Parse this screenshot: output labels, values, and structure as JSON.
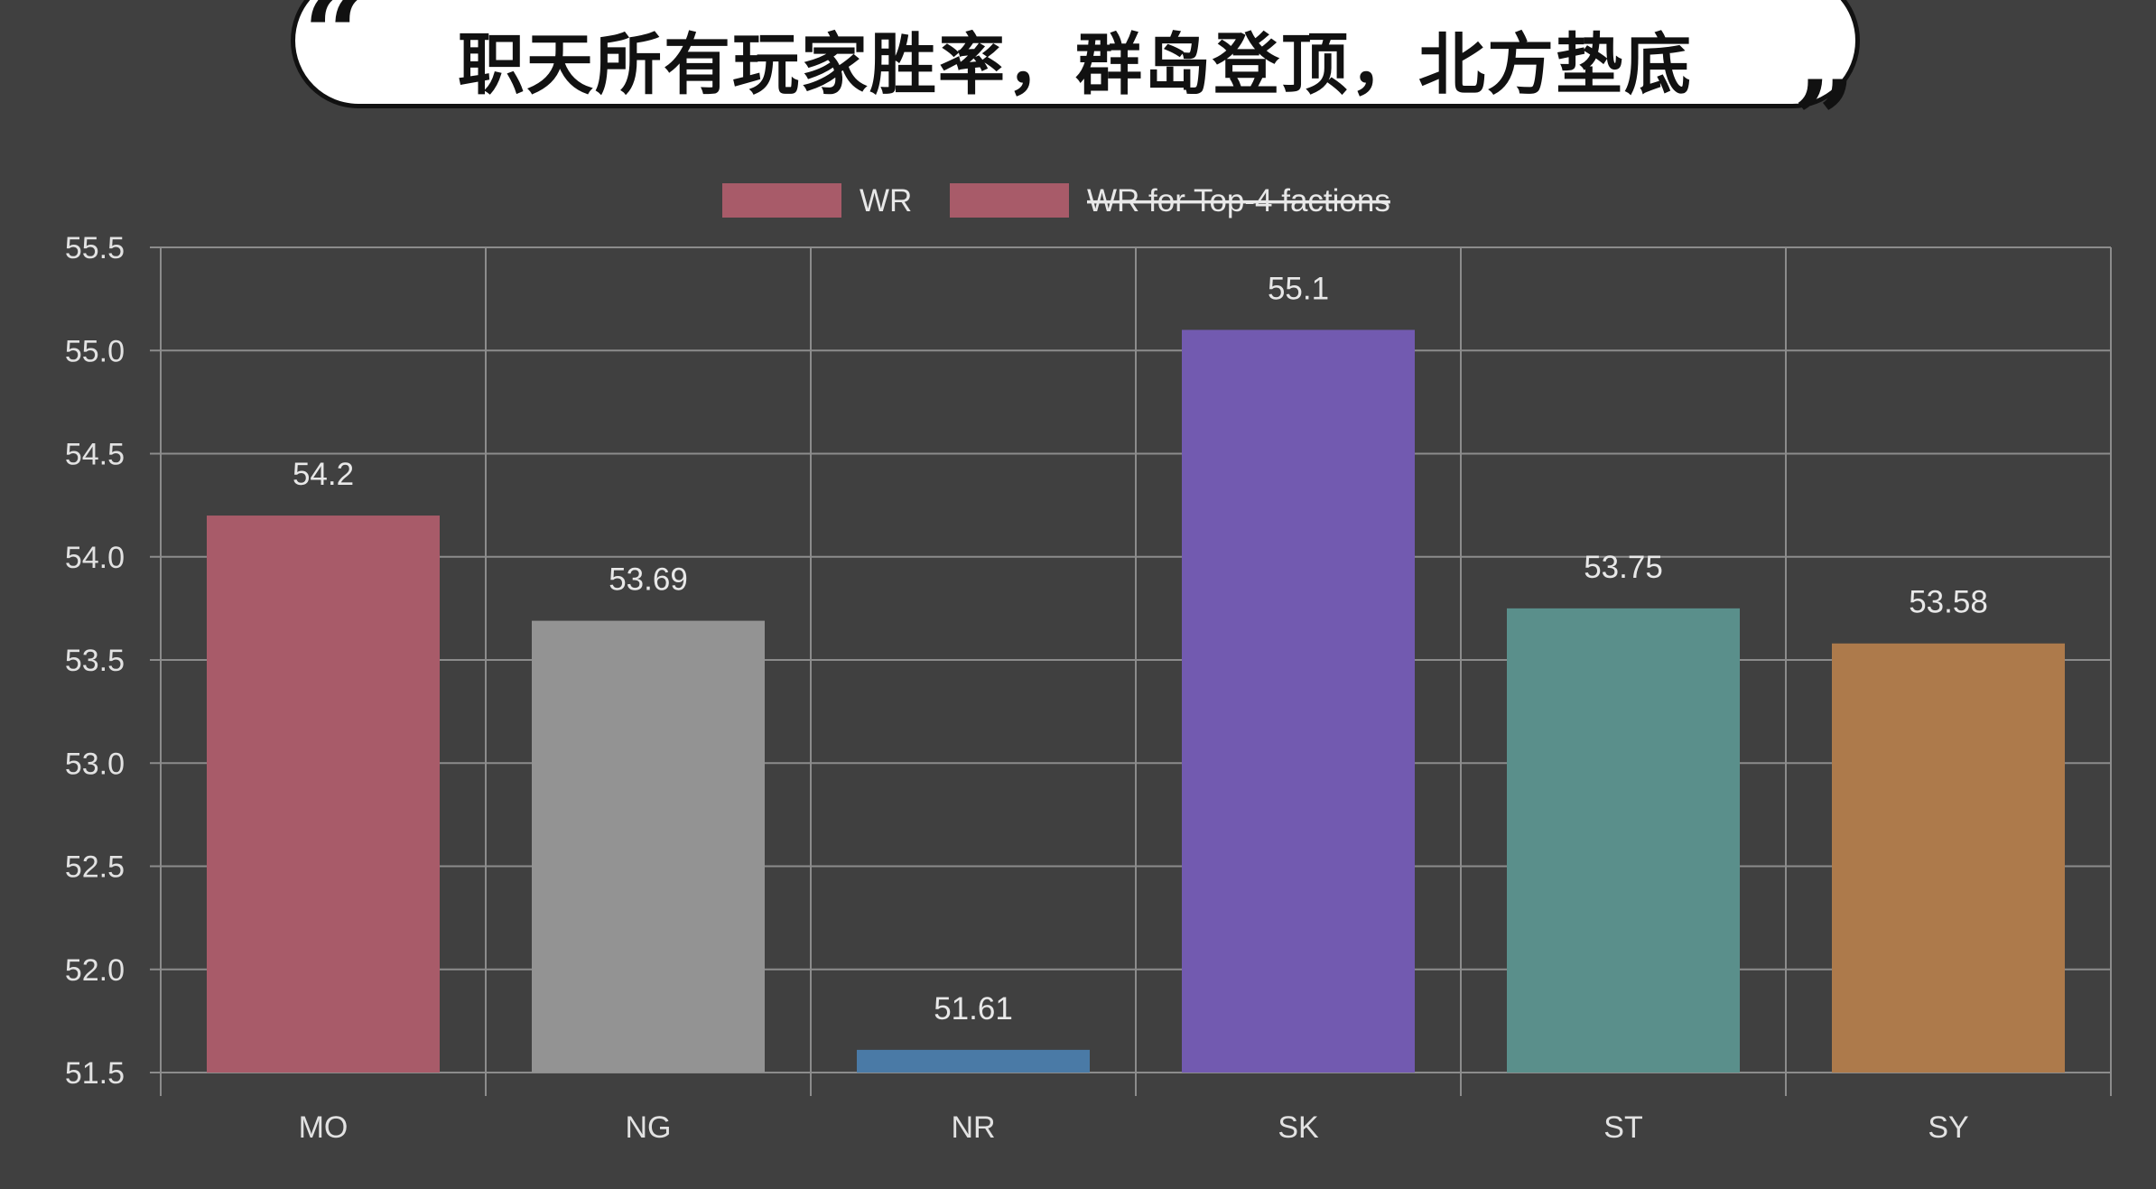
{
  "title": "职天所有玩家胜率，群岛登顶，北方垫底",
  "quote_open": "“",
  "quote_close": "”",
  "chart_data": {
    "type": "bar",
    "categories": [
      "MO",
      "NG",
      "NR",
      "SK",
      "ST",
      "SY"
    ],
    "series": [
      {
        "name": "WR",
        "values": [
          54.2,
          53.69,
          51.61,
          55.1,
          53.75,
          53.58
        ]
      }
    ],
    "value_labels": [
      "54.2",
      "53.69",
      "51.61",
      "55.1",
      "53.75",
      "53.58"
    ],
    "bar_colors": [
      "#a85b69",
      "#939393",
      "#4a7aa6",
      "#725ab0",
      "#5a8f8b",
      "#ad7a4b"
    ],
    "legend": [
      {
        "label": "WR",
        "color": "#a85b69",
        "hidden": false
      },
      {
        "label": "WR for Top-4 factions",
        "color": "#a85b69",
        "hidden": true
      }
    ],
    "ylim": [
      51.5,
      55.5
    ],
    "yticks": [
      "55.5",
      "55.0",
      "54.5",
      "54.0",
      "53.5",
      "53.0",
      "52.5",
      "52.0",
      "51.5"
    ],
    "ytick_values": [
      55.5,
      55.0,
      54.5,
      54.0,
      53.5,
      53.0,
      52.5,
      52.0,
      51.5
    ],
    "grid": true,
    "legend_position": "top",
    "xlabel": "",
    "ylabel": ""
  }
}
